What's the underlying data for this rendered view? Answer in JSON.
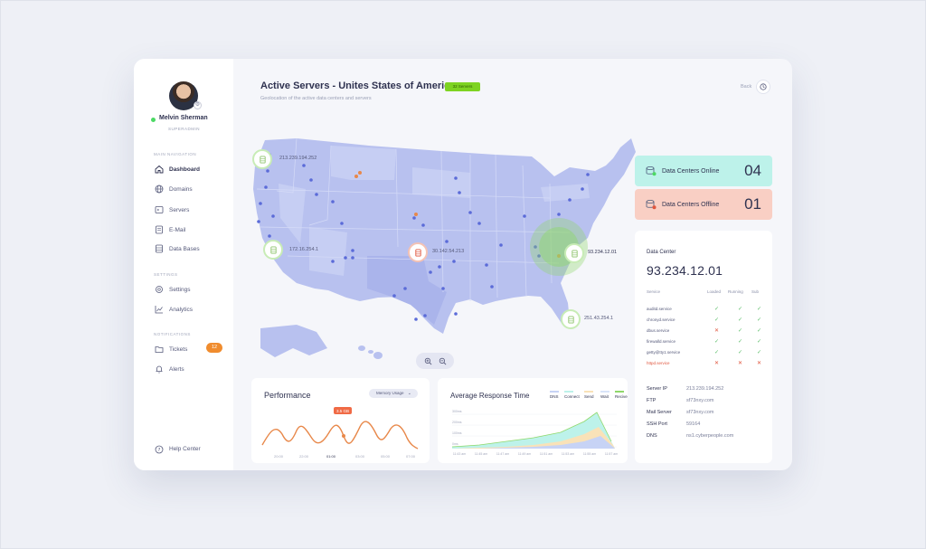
{
  "user": {
    "name": "Melvin Sherman",
    "role": "SUPERADMIN"
  },
  "nav": {
    "main_label": "MAIN NAVIGATION",
    "main_items": [
      {
        "label": "Dashboard",
        "icon": "home-icon",
        "active": true
      },
      {
        "label": "Domains",
        "icon": "globe-icon"
      },
      {
        "label": "Servers",
        "icon": "server-icon"
      },
      {
        "label": "E-Mail",
        "icon": "mail-icon"
      },
      {
        "label": "Data Bases",
        "icon": "database-icon"
      }
    ],
    "settings_label": "SETTINGS",
    "settings_items": [
      {
        "label": "Settings",
        "icon": "gear-icon"
      },
      {
        "label": "Analytics",
        "icon": "chart-icon"
      }
    ],
    "notifications_label": "NOTIFICATIONS",
    "notification_items": [
      {
        "label": "Tickets",
        "icon": "folder-icon",
        "badge": "12"
      },
      {
        "label": "Alerts",
        "icon": "bell-icon"
      }
    ],
    "help": "Help Center"
  },
  "header": {
    "title": "Active Servers - Unites States of America",
    "badge": "32 Servers",
    "subtitle": "Geolocation of the active data centers and servers",
    "back": "Back"
  },
  "map": {
    "servers": [
      {
        "ip": "213.239.194.252"
      },
      {
        "ip": "172.16.254.1"
      },
      {
        "ip": "30.142.54.213"
      },
      {
        "ip": "93.234.12.01"
      },
      {
        "ip": "251.43.254.1"
      }
    ]
  },
  "status": {
    "online": {
      "label": "Data Centers Online",
      "count": "04"
    },
    "offline": {
      "label": "Data Centers Offline",
      "count": "01"
    }
  },
  "datacenter": {
    "label": "Data Center",
    "ip": "93.234.12.01",
    "columns": [
      "Service",
      "Loaded",
      "Running",
      "Sub"
    ],
    "services": [
      {
        "name": "auditd.service",
        "loaded": "ok",
        "running": "ok",
        "sub": "ok"
      },
      {
        "name": "chronyd.service",
        "loaded": "ok",
        "running": "ok",
        "sub": "ok"
      },
      {
        "name": "dbus.service",
        "loaded": "bad",
        "running": "ok",
        "sub": "ok"
      },
      {
        "name": "firewalld.service",
        "loaded": "ok",
        "running": "ok",
        "sub": "ok"
      },
      {
        "name": "getty@tty1.service",
        "loaded": "ok",
        "running": "ok",
        "sub": "ok"
      },
      {
        "name": "httpd.service",
        "loaded": "bad",
        "running": "bad",
        "sub": "bad",
        "warn": true
      }
    ],
    "info": [
      {
        "key": "Server IP",
        "value": "213.239.194.252"
      },
      {
        "key": "FTP",
        "value": "sf73nxy.com"
      },
      {
        "key": "Mail Server",
        "value": "sf73nxy.com"
      },
      {
        "key": "SSH Port",
        "value": "59164"
      },
      {
        "key": "DNS",
        "value": "ns1.cyberpeople.com"
      }
    ]
  },
  "performance": {
    "title": "Performance",
    "dropdown": "Memory Usage",
    "tooltip": "3.5 GB",
    "x_labels": [
      "20:00",
      "22:00",
      "01:00",
      "03:00",
      "05:00",
      "07:00"
    ],
    "colors": {
      "line": "#e8884a"
    }
  },
  "response": {
    "title": "Average Response Time",
    "legend": [
      {
        "label": "DNS",
        "color": "#c7d3f5"
      },
      {
        "label": "Connect",
        "color": "#bdf2ea"
      },
      {
        "label": "Send",
        "color": "#f9e2b8"
      },
      {
        "label": "Wait",
        "color": "#d9e4f9"
      },
      {
        "label": "Recive",
        "color": "#8fd86a"
      }
    ],
    "y_labels": [
      "300ms",
      "200ms",
      "100ms",
      "0ms"
    ],
    "x_labels": [
      "11:43 am",
      "11:45 am",
      "11:47 am",
      "11:49 am",
      "11:51 am",
      "11:53 am",
      "11:55 am",
      "11:57 am"
    ]
  }
}
